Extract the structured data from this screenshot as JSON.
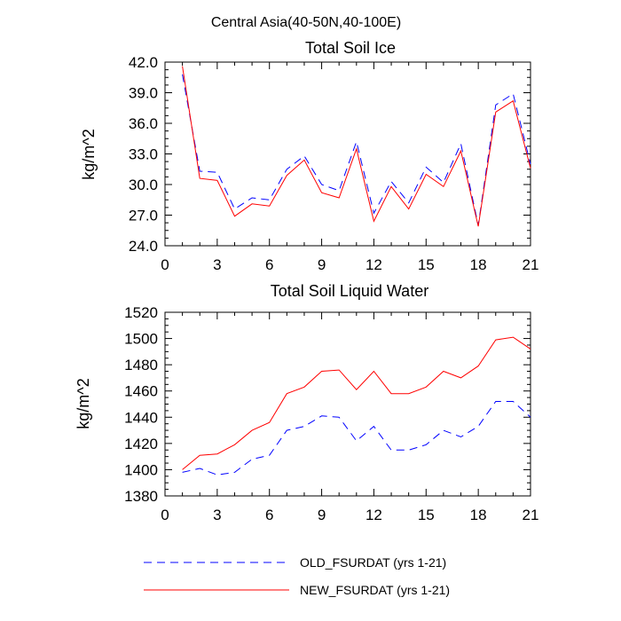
{
  "figure_title": "Central Asia(40-50N,40-100E)",
  "legend": [
    {
      "label": "OLD_FSURDAT (yrs 1-21)",
      "color": "#0000ff",
      "style": "dashed"
    },
    {
      "label": "NEW_FSURDAT (yrs 1-21)",
      "color": "#ff0000",
      "style": "solid"
    }
  ],
  "chart_data": [
    {
      "type": "line",
      "title": "Total Soil Ice",
      "xlabel": "",
      "ylabel": "kg/m^2",
      "xlim": [
        0,
        21
      ],
      "ylim": [
        24,
        42
      ],
      "xticks": [
        0,
        3,
        6,
        9,
        12,
        15,
        18,
        21
      ],
      "yticks": [
        24,
        27,
        30,
        33,
        36,
        39,
        42
      ],
      "ytick_labels": [
        "24.0",
        "27.0",
        "30.0",
        "33.0",
        "36.0",
        "39.0",
        "42.0"
      ],
      "x": [
        1,
        2,
        3,
        4,
        5,
        6,
        7,
        8,
        9,
        10,
        11,
        12,
        13,
        14,
        15,
        16,
        17,
        18,
        19,
        20,
        21
      ],
      "series": [
        {
          "name": "OLD_FSURDAT (yrs 1-21)",
          "color": "#0000ff",
          "style": "dashed",
          "values": [
            40.8,
            31.3,
            31.2,
            27.6,
            28.7,
            28.5,
            31.5,
            32.8,
            30.0,
            29.4,
            34.2,
            27.2,
            30.3,
            28.2,
            31.7,
            30.2,
            34.0,
            26.0,
            37.8,
            38.9,
            32.0
          ]
        },
        {
          "name": "NEW_FSURDAT (yrs 1-21)",
          "color": "#ff0000",
          "style": "solid",
          "values": [
            41.6,
            30.6,
            30.4,
            26.9,
            28.1,
            27.9,
            30.9,
            32.4,
            29.2,
            28.7,
            33.5,
            26.4,
            29.8,
            27.6,
            31.0,
            29.8,
            33.3,
            25.9,
            37.1,
            38.2,
            31.6
          ]
        }
      ]
    },
    {
      "type": "line",
      "title": "Total Soil Liquid Water",
      "xlabel": "",
      "ylabel": "kg/m^2",
      "xlim": [
        0,
        21
      ],
      "ylim": [
        1380,
        1520
      ],
      "xticks": [
        0,
        3,
        6,
        9,
        12,
        15,
        18,
        21
      ],
      "yticks": [
        1380,
        1400,
        1420,
        1440,
        1460,
        1480,
        1500,
        1520
      ],
      "ytick_labels": [
        "1380",
        "1400",
        "1420",
        "1440",
        "1460",
        "1480",
        "1500",
        "1520"
      ],
      "x": [
        1,
        2,
        3,
        4,
        5,
        6,
        7,
        8,
        9,
        10,
        11,
        12,
        13,
        14,
        15,
        16,
        17,
        18,
        19,
        20,
        21
      ],
      "series": [
        {
          "name": "OLD_FSURDAT (yrs 1-21)",
          "color": "#0000ff",
          "style": "dashed",
          "values": [
            1398,
            1401,
            1396,
            1398,
            1408,
            1411,
            1430,
            1433,
            1441,
            1440,
            1422,
            1433,
            1415,
            1415,
            1419,
            1430,
            1425,
            1433,
            1452,
            1452,
            1440
          ]
        },
        {
          "name": "NEW_FSURDAT (yrs 1-21)",
          "color": "#ff0000",
          "style": "solid",
          "values": [
            1400,
            1411,
            1412,
            1419,
            1430,
            1436,
            1458,
            1463,
            1475,
            1476,
            1461,
            1475,
            1458,
            1458,
            1463,
            1475,
            1470,
            1479,
            1499,
            1501,
            1492
          ]
        }
      ]
    }
  ]
}
